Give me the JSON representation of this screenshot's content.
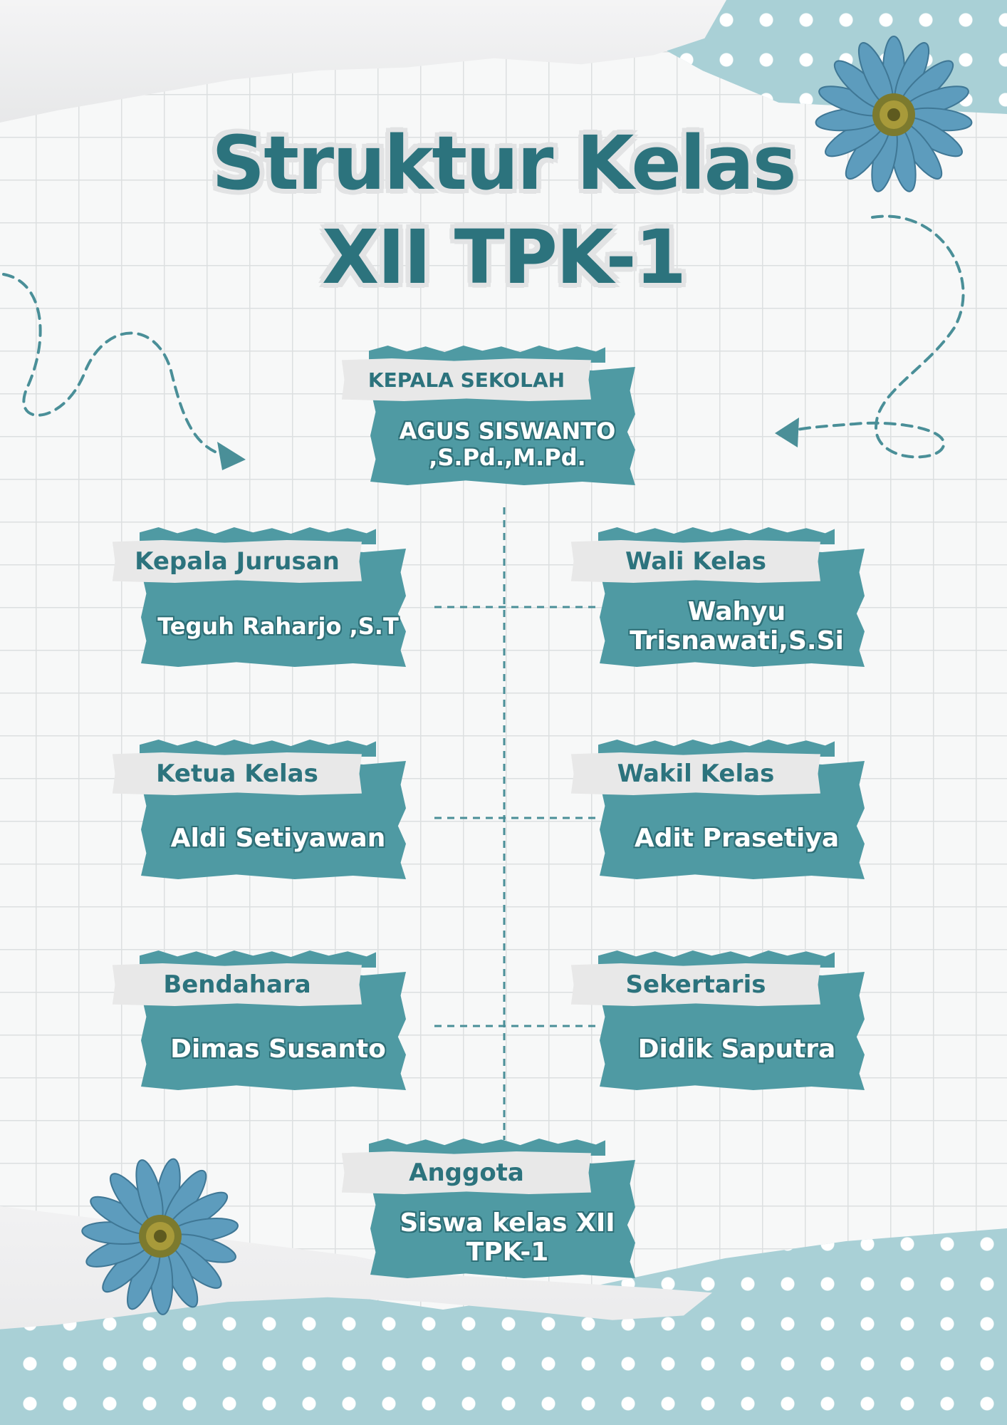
{
  "title": {
    "line1": "Struktur Kelas",
    "line2": "XII TPK-1"
  },
  "nodes": {
    "kepala_sekolah": {
      "role": "KEPALA SEKOLAH",
      "name": "AGUS SISWANTO ,S.Pd.,M.Pd."
    },
    "kepala_jurusan": {
      "role": "Kepala Jurusan",
      "name": "Teguh Raharjo ,S.T"
    },
    "wali_kelas": {
      "role": "Wali Kelas",
      "name": "Wahyu Trisnawati,S.Si"
    },
    "ketua_kelas": {
      "role": "Ketua Kelas",
      "name": "Aldi Setiyawan"
    },
    "wakil_kelas": {
      "role": "Wakil Kelas",
      "name": "Adit Prasetiya"
    },
    "bendahara": {
      "role": "Bendahara",
      "name": "Dimas Susanto"
    },
    "sekertaris": {
      "role": "Sekertaris",
      "name": "Didik Saputra"
    },
    "anggota": {
      "role": "Anggota",
      "name": "Siswa kelas XII TPK-1"
    }
  },
  "colors": {
    "teal_card": "#4f9aa3",
    "title_teal": "#2c737d",
    "label_paper": "#e8e8e8",
    "dots_background": "#a9d0d6"
  },
  "icons": [
    "flower-icon",
    "dashed-arrow-icon"
  ]
}
